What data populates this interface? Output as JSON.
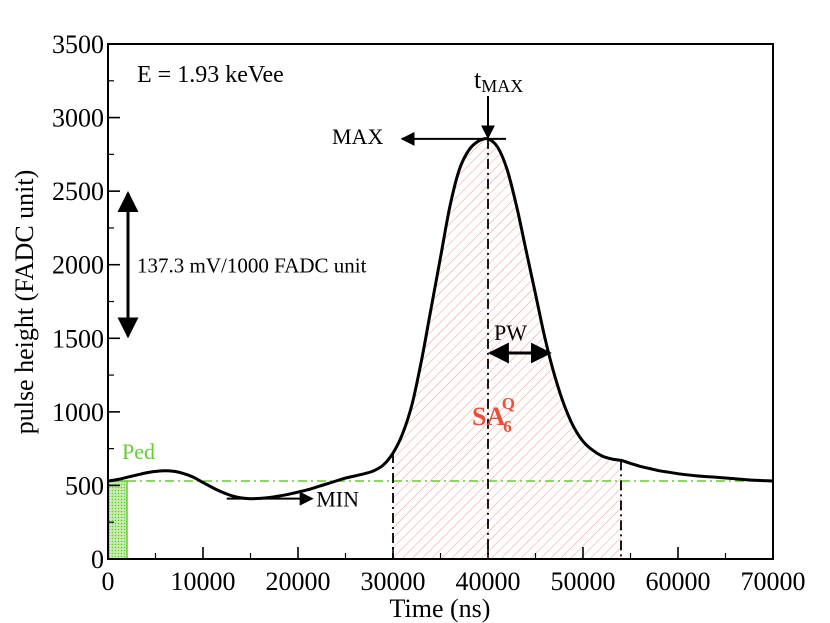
{
  "chart_data": {
    "type": "line",
    "title": "",
    "xlabel": "Time (ns)",
    "ylabel": "pulse height (FADC unit)",
    "xlim": [
      0,
      70000
    ],
    "ylim": [
      0,
      3500
    ],
    "x_ticks": [
      0,
      10000,
      20000,
      30000,
      40000,
      50000,
      60000,
      70000
    ],
    "x_tick_labels": [
      "0",
      "10000",
      "20000",
      "30000",
      "40000",
      "50000",
      "60000",
      "70000"
    ],
    "y_ticks": [
      0,
      500,
      1000,
      1500,
      2000,
      2500,
      3000,
      3500
    ],
    "y_tick_labels": [
      "0",
      "500",
      "1000",
      "1500",
      "2000",
      "2500",
      "3000",
      "3500"
    ],
    "grid": false,
    "series": [
      {
        "name": "pulse",
        "color": "#000000",
        "x": [
          0,
          1000,
          2000,
          3000,
          4000,
          5000,
          6000,
          7000,
          8000,
          9000,
          10000,
          11000,
          12000,
          13000,
          14000,
          15000,
          16000,
          17000,
          18000,
          19000,
          20000,
          21000,
          22000,
          23000,
          24000,
          25000,
          26000,
          27000,
          28000,
          29000,
          30000,
          31000,
          32000,
          33000,
          34000,
          35000,
          36000,
          37000,
          38000,
          39000,
          40000,
          41000,
          42000,
          43000,
          44000,
          45000,
          46000,
          47000,
          48000,
          49000,
          50000,
          51000,
          52000,
          53000,
          54000,
          55000,
          56000,
          57000,
          58000,
          59000,
          60000,
          62000,
          64000,
          66000,
          68000,
          70000
        ],
        "y": [
          530,
          540,
          555,
          570,
          585,
          595,
          600,
          595,
          580,
          555,
          520,
          485,
          455,
          430,
          415,
          410,
          412,
          418,
          428,
          440,
          455,
          470,
          490,
          510,
          530,
          550,
          565,
          580,
          600,
          640,
          720,
          850,
          1050,
          1350,
          1700,
          2050,
          2400,
          2650,
          2780,
          2840,
          2855,
          2800,
          2650,
          2400,
          2100,
          1800,
          1500,
          1250,
          1050,
          900,
          800,
          740,
          700,
          680,
          670,
          650,
          630,
          615,
          600,
          590,
          580,
          565,
          555,
          545,
          535,
          530
        ]
      }
    ],
    "pedestal": {
      "label": "Ped",
      "value": 530,
      "x_range": [
        0,
        2000
      ],
      "color": "#66cc33"
    },
    "integration_window": {
      "label_main": "SA",
      "label_sub": "6",
      "label_sup": "Q",
      "x_range": [
        30000,
        54000
      ],
      "color": "#e8503a"
    },
    "annotations": {
      "energy": "E = 1.93 keVee",
      "scale": "137.3 mV/1000 FADC unit",
      "scale_range": [
        1500,
        2500
      ],
      "max_label": "MAX",
      "max_value": 2855,
      "tmax_main": "t",
      "tmax_sub": "MAX",
      "t_max": 40000,
      "min_label": "MIN",
      "min_value": 410,
      "min_arrow_x": [
        12500,
        21500
      ],
      "pw_label": "PW",
      "pw_y": 1400,
      "pw_x": [
        40000,
        46500
      ]
    }
  }
}
